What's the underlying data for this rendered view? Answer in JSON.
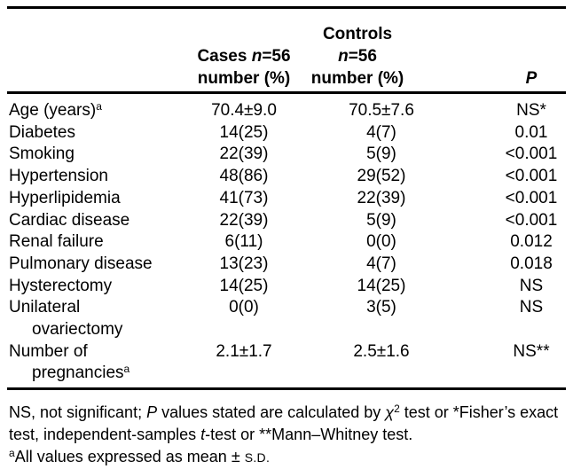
{
  "header": {
    "cases": {
      "pre": "Cases ",
      "n": "n",
      "post": "=56",
      "line2": "number (%)"
    },
    "controls": {
      "pre": "Controls ",
      "n": "n",
      "post": "=56",
      "line2": "number (%)"
    },
    "p": "P"
  },
  "rows": [
    {
      "label": "Age (years)",
      "sup": "a",
      "cases": "70.4±9.0",
      "controls": "70.5±7.6",
      "p": "NS*"
    },
    {
      "label": "Diabetes",
      "cases": "14(25)",
      "controls": "4(7)",
      "p": "0.01"
    },
    {
      "label": "Smoking",
      "cases": "22(39)",
      "controls": "5(9)",
      "p": "<0.001"
    },
    {
      "label": "Hypertension",
      "cases": "48(86)",
      "controls": "29(52)",
      "p": "<0.001"
    },
    {
      "label": "Hyperlipidemia",
      "cases": "41(73)",
      "controls": "22(39)",
      "p": "<0.001"
    },
    {
      "label": "Cardiac disease",
      "cases": "22(39)",
      "controls": "5(9)",
      "p": "<0.001"
    },
    {
      "label": "Renal failure",
      "cases": "6(11)",
      "controls": "0(0)",
      "p": "0.012"
    },
    {
      "label": "Pulmonary disease",
      "cases": "13(23)",
      "controls": "4(7)",
      "p": "0.018"
    },
    {
      "label": "Hysterectomy",
      "cases": "14(25)",
      "controls": "14(25)",
      "p": "NS"
    },
    {
      "label": "Unilateral",
      "label2": "ovariectomy",
      "cases": "0(0)",
      "controls": "3(5)",
      "p": "NS"
    },
    {
      "label": "Number of",
      "label2": "pregnancies",
      "sup2": "a",
      "cases": "2.1±1.7",
      "controls": "2.5±1.6",
      "p": "NS**"
    }
  ],
  "footnotes": {
    "line1": {
      "pre": "NS, not significant; ",
      "p": "P",
      "mid": " values stated are calculated by ",
      "chi": "χ",
      "sup": "2",
      "post": " test or *Fisher’s exact"
    },
    "line2": {
      "pre": "test, independent-samples ",
      "t": "t",
      "post": "-test or **Mann–Whitney test."
    },
    "line3": {
      "sup": "a",
      "pre": "All values expressed as mean ± ",
      "sd": "S.D."
    }
  }
}
